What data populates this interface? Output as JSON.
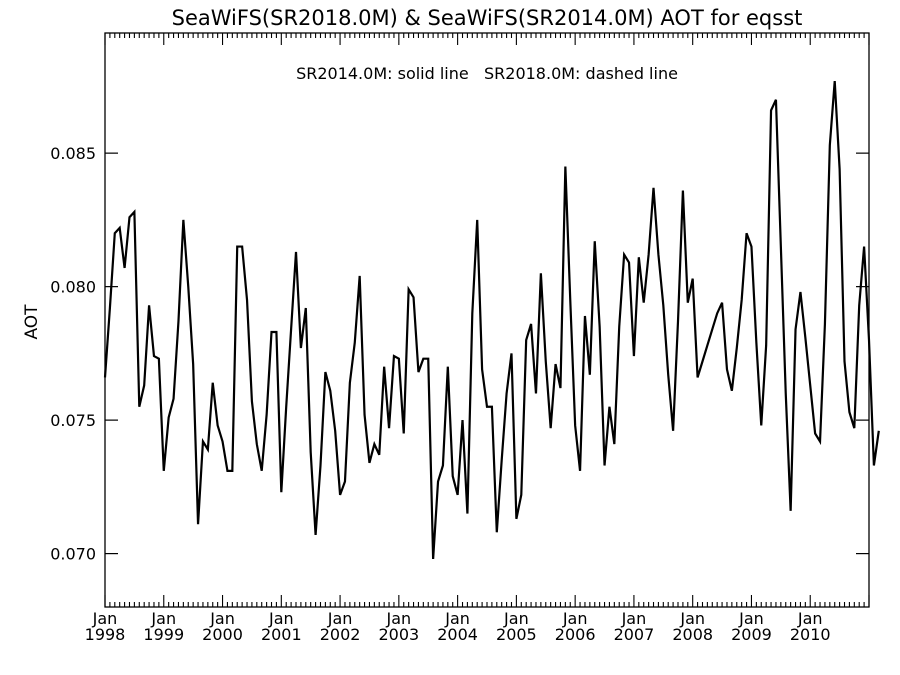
{
  "chart_data": {
    "type": "line",
    "title": "SeaWiFS(SR2018.0M) & SeaWiFS(SR2014.0M)  AOT for eqsst",
    "annotation": "SR2014.0M: solid line   SR2018.0M: dashed line",
    "xlabel": "",
    "ylabel": "AOT",
    "ylim": [
      0.068,
      0.0895
    ],
    "xlim": [
      1998.0,
      2011.0
    ],
    "yticks": [
      0.07,
      0.075,
      0.08,
      0.085
    ],
    "ytick_labels": [
      "0.070",
      "0.075",
      "0.080",
      "0.085"
    ],
    "xticks": [
      1998,
      1999,
      2000,
      2001,
      2002,
      2003,
      2004,
      2005,
      2006,
      2007,
      2008,
      2009,
      2010
    ],
    "xtick_month_label": "Jan",
    "xtick_year_labels": [
      "1998",
      "1999",
      "2000",
      "2001",
      "2002",
      "2003",
      "2004",
      "2005",
      "2006",
      "2007",
      "2008",
      "2009",
      "2010"
    ],
    "grid": false,
    "line_color": "#000000",
    "series": [
      {
        "style": "solid",
        "start": "1998-01",
        "frequency": "monthly",
        "values": [
          0.0766,
          0.0792,
          0.082,
          0.0822,
          0.0807,
          0.0826,
          0.0828,
          0.0755,
          0.0763,
          0.0793,
          0.0774,
          0.0773,
          0.0731,
          0.0751,
          0.0758,
          0.0787,
          0.0825,
          0.08,
          0.0771,
          0.0711,
          0.0742,
          0.0739,
          0.0764,
          0.0748,
          0.0742,
          0.0731,
          0.0731,
          0.0815,
          0.0815,
          0.0795,
          0.0757,
          0.0741,
          0.0731,
          0.0752,
          0.0783,
          0.0783,
          0.0723,
          0.0755,
          0.0784,
          0.0813,
          0.0777,
          0.0792,
          0.0738,
          0.0707,
          0.0733,
          0.0768,
          0.0761,
          0.0746,
          0.0722,
          0.0727,
          0.0764,
          0.0779,
          0.0804,
          0.0752,
          0.0734,
          0.0741,
          0.0737,
          0.077,
          0.0747,
          0.0774,
          0.0773,
          0.0745,
          0.0799,
          0.0796,
          0.0768,
          0.0773,
          0.0773,
          0.0698,
          0.0727,
          0.0733,
          0.077,
          0.0729,
          0.0722,
          0.075,
          0.0715,
          0.079,
          0.0825,
          0.0769,
          0.0755,
          0.0755,
          0.0708,
          0.0735,
          0.076,
          0.0775,
          0.0713,
          0.0722,
          0.078,
          0.0786,
          0.076,
          0.0805,
          0.0772,
          0.0747,
          0.0771,
          0.0762,
          0.0845,
          0.0795,
          0.0748,
          0.0731,
          0.0789,
          0.0767,
          0.0817,
          0.0785,
          0.0733,
          0.0755,
          0.0741,
          0.0785,
          0.0812,
          0.0809,
          0.0774,
          0.0811,
          0.0794,
          0.0812,
          0.0837,
          0.0812,
          0.0793,
          0.0767,
          0.0746,
          0.0787,
          0.0836,
          0.0794,
          0.0803,
          0.0766,
          0.0772,
          0.0778,
          0.0784,
          0.079,
          0.0794,
          0.0769,
          0.0761,
          0.0777,
          0.0795,
          0.082,
          0.0815,
          0.0779,
          0.0748,
          0.0778,
          0.0866,
          0.087,
          0.0815,
          0.076,
          0.0716,
          0.0784,
          0.0798,
          0.0781,
          0.0763,
          0.0745,
          0.0742,
          0.0786,
          0.0853,
          0.0877,
          0.0844,
          0.0772,
          0.0753,
          0.0747,
          0.0793,
          0.0815,
          0.078,
          0.0733,
          0.0746
        ]
      }
    ]
  }
}
